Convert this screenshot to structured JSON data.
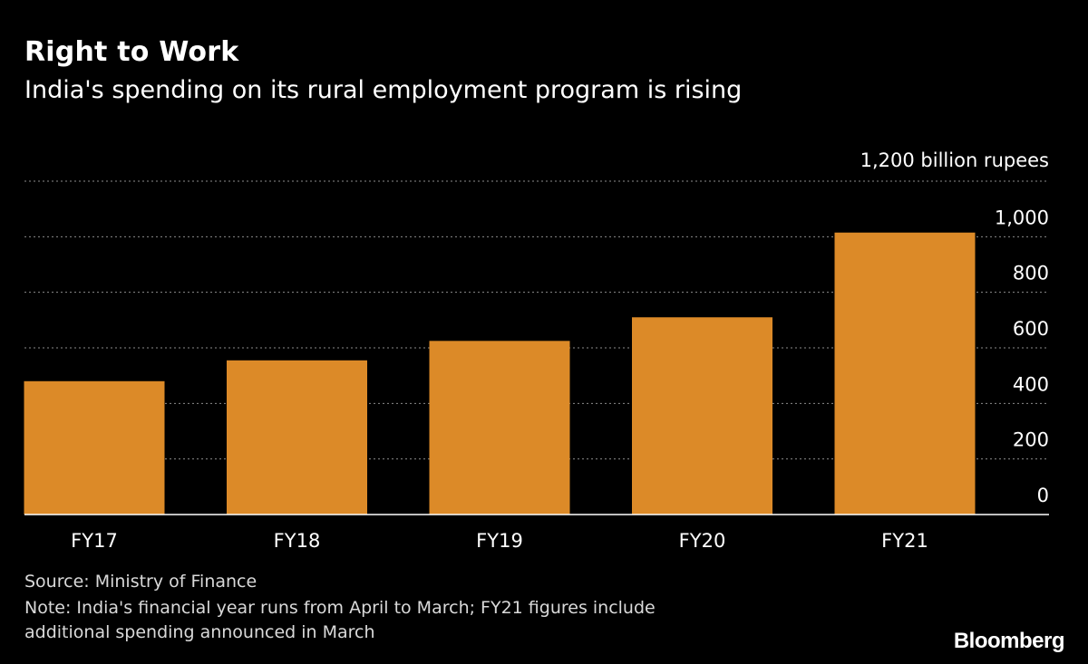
{
  "header": {
    "title": "Right to Work",
    "subtitle": "India's spending on its rural employment program is rising"
  },
  "chart_data": {
    "type": "bar",
    "categories": [
      "FY17",
      "FY18",
      "FY19",
      "FY20",
      "FY21"
    ],
    "values": [
      480,
      555,
      625,
      710,
      1015
    ],
    "unit_label": "1,200 billion rupees",
    "y_ticks": [
      0,
      200,
      400,
      600,
      800,
      1000
    ],
    "y_tick_labels": [
      "0",
      "200",
      "400",
      "600",
      "800",
      "1,000"
    ],
    "ylim": [
      0,
      1200
    ],
    "bar_color": "#dc8a28",
    "grid": true
  },
  "footer": {
    "source": "Source: Ministry of Finance",
    "note_line1": "Note: India's financial year runs from April to March; FY21 figures include",
    "note_line2": "additional spending announced in March"
  },
  "brand": "Bloomberg"
}
